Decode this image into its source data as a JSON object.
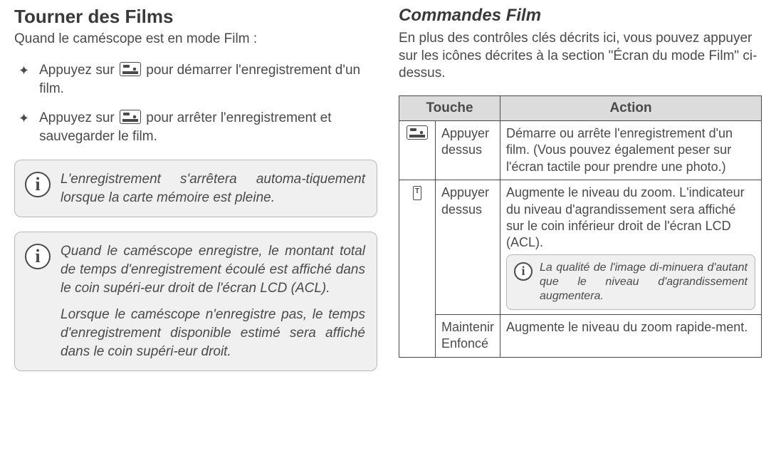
{
  "left": {
    "title": "Tourner des Films",
    "intro": "Quand le caméscope est en mode Film :",
    "bullets": [
      {
        "pre": "Appuyez sur ",
        "post": " pour démarrer l'enregistrement d'un film."
      },
      {
        "pre": "Appuyez sur ",
        "post": " pour arrêter l'enregistrement et sauvegarder le film."
      }
    ],
    "note1": "L'enregistrement s'arrêtera automa-tiquement lorsque la carte mémoire est pleine.",
    "note2a": "Quand le caméscope enregistre, le montant total de temps d'enregistrement écoulé est affiché dans le coin supéri-eur droit de l'écran LCD (ACL).",
    "note2b": "Lorsque le caméscope n'enregistre pas, le temps d'enregistrement disponible estimé sera affiché dans le coin supéri-eur droit."
  },
  "right": {
    "title": "Commandes Film",
    "intro": "En plus des contrôles clés décrits ici, vous pouvez appuyer sur les icônes décrites à la section \"Écran du mode Film\" ci-dessus.",
    "headers": {
      "touche": "Touche",
      "action": "Action"
    },
    "rows": {
      "r1": {
        "touche": "Appuyer dessus",
        "action": "Démarre ou arrête l'enregistrement d'un film. (Vous pouvez également peser sur l'écran tactile pour prendre une photo.)"
      },
      "r2": {
        "touche": "Appuyer dessus",
        "action": "Augmente le niveau du zoom. L'indicateur du niveau d'agrandissement sera affiché sur le coin inférieur droit de l'écran LCD (ACL).",
        "note": "La qualité de l'image di-minuera d'autant que le niveau d'agrandissement augmentera."
      },
      "r3": {
        "touche": "Maintenir Enfoncé",
        "action": "Augmente le niveau du zoom rapide-ment."
      }
    }
  }
}
